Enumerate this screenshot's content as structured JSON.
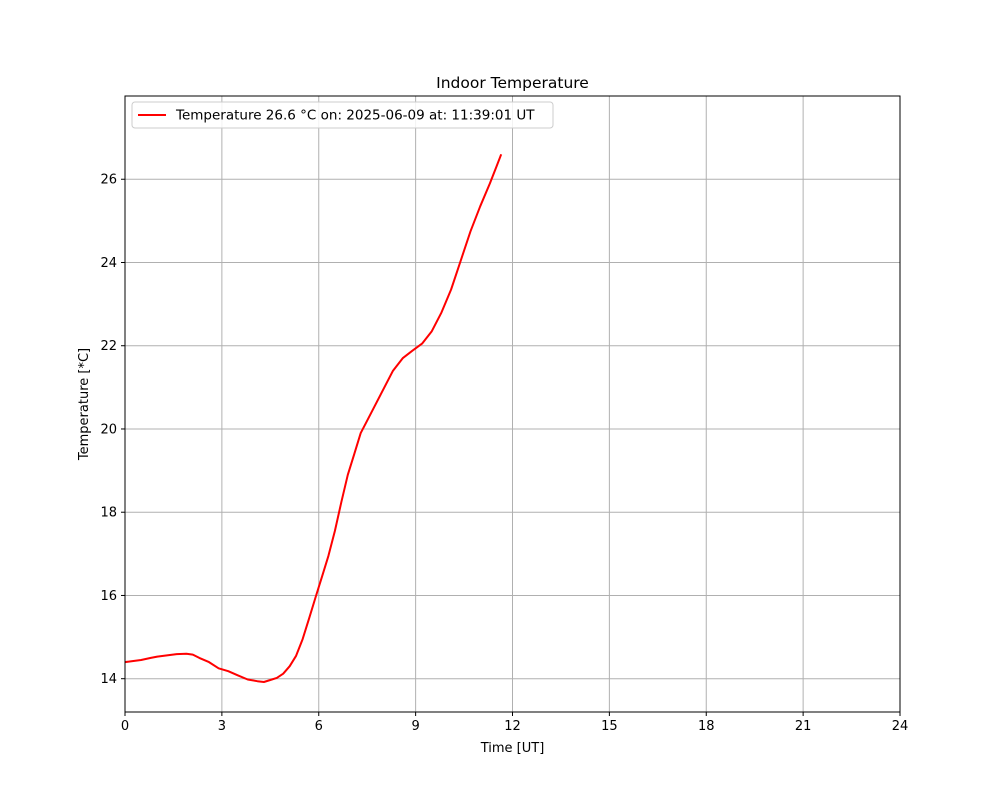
{
  "chart_data": {
    "type": "line",
    "title": "Indoor Temperature",
    "xlabel": "Time [UT]",
    "ylabel": "Temperature [*C]",
    "xlim": [
      0,
      24
    ],
    "ylim": [
      13.2,
      28.0
    ],
    "xticks": [
      0,
      3,
      6,
      9,
      12,
      15,
      18,
      21,
      24
    ],
    "yticks": [
      14,
      16,
      18,
      20,
      22,
      24,
      26
    ],
    "grid": true,
    "legend_position": "top-left",
    "series": [
      {
        "name": "Temperature 26.6 °C on: 2025-06-09 at: 11:39:01 UT",
        "color": "#ff0000",
        "x": [
          0.0,
          0.2,
          0.5,
          0.8,
          1.0,
          1.3,
          1.6,
          1.9,
          2.1,
          2.3,
          2.6,
          2.9,
          3.2,
          3.5,
          3.8,
          4.1,
          4.3,
          4.5,
          4.7,
          4.9,
          5.1,
          5.3,
          5.5,
          5.7,
          5.9,
          6.1,
          6.3,
          6.5,
          6.7,
          6.9,
          7.1,
          7.3,
          7.5,
          7.7,
          8.0,
          8.3,
          8.6,
          8.9,
          9.2,
          9.5,
          9.8,
          10.1,
          10.4,
          10.7,
          11.0,
          11.3,
          11.5,
          11.65
        ],
        "y": [
          14.4,
          14.42,
          14.45,
          14.5,
          14.53,
          14.56,
          14.59,
          14.6,
          14.58,
          14.5,
          14.4,
          14.25,
          14.18,
          14.08,
          13.98,
          13.94,
          13.92,
          13.97,
          14.02,
          14.12,
          14.3,
          14.55,
          14.95,
          15.45,
          15.95,
          16.45,
          16.95,
          17.55,
          18.25,
          18.9,
          19.4,
          19.9,
          20.2,
          20.5,
          20.95,
          21.4,
          21.7,
          21.88,
          22.05,
          22.35,
          22.8,
          23.35,
          24.05,
          24.75,
          25.35,
          25.9,
          26.3,
          26.6
        ]
      }
    ]
  }
}
